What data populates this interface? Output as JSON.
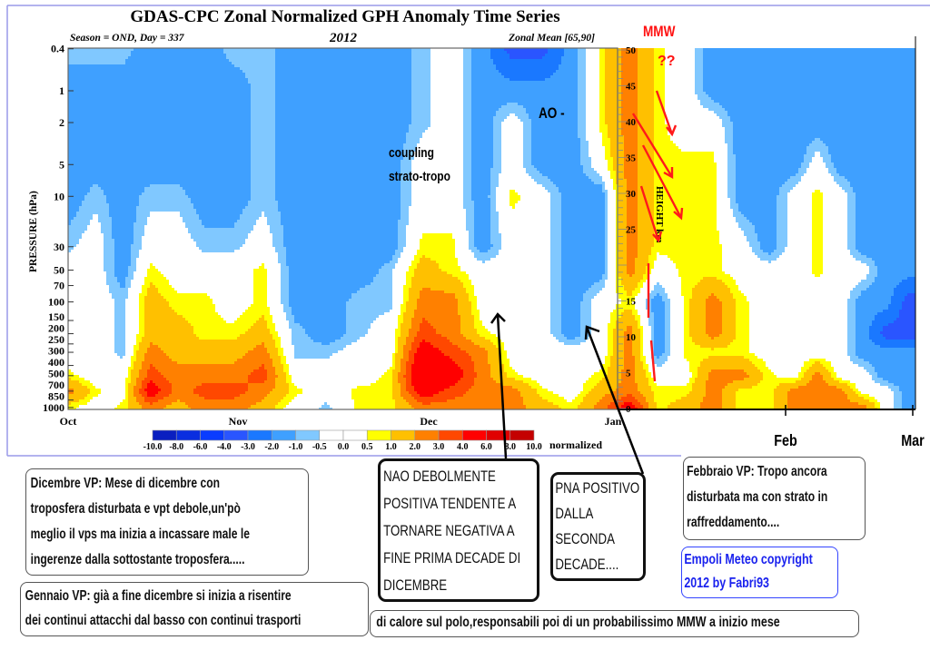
{
  "chart_data": {
    "type": "heatmap",
    "title": "GDAS-CPC Zonal Normalized GPH Anomaly Time Series",
    "subtitle_left": "Season = OND, Day = 337",
    "subtitle_center": "2012",
    "subtitle_right": "Zonal Mean [65,90]",
    "ylabel": "PRESSURE (hPa)",
    "y_scale": "log",
    "y_ticks": [
      "0.4",
      "1",
      "2",
      "5",
      "10",
      "30",
      "50",
      "70",
      "100",
      "150",
      "200",
      "250",
      "300",
      "400",
      "500",
      "700",
      "850",
      "1000"
    ],
    "x_ticks": [
      {
        "label": "Oct",
        "date": "2012-10-01"
      },
      {
        "label": "Nov",
        "date": "2012-11-01"
      },
      {
        "label": "Dec",
        "date": "2012-12-01"
      },
      {
        "label": "Jan",
        "date": "2013-01-01"
      },
      {
        "label": "Feb",
        "date": "2013-02-01"
      },
      {
        "label": "Mar",
        "date": "2013-03-01"
      }
    ],
    "colorbar": {
      "unit": "normalized",
      "labels": [
        "-10.0",
        "-8.0",
        "-6.0",
        "-4.0",
        "-3.0",
        "-2.0",
        "-1.0",
        "-0.5",
        "0.0",
        "0.5",
        "1.0",
        "2.0",
        "3.0",
        "4.0",
        "6.0",
        "8.0",
        "10.0"
      ],
      "colors": [
        "#0a1fc0",
        "#0a2ee0",
        "#0a3cff",
        "#2a55ff",
        "#1a78ff",
        "#3fa0ff",
        "#80c8ff",
        "#ffffff",
        "#ffffff",
        "#ffff00",
        "#ffc000",
        "#ff8000",
        "#ff4800",
        "#ff0000",
        "#e00000",
        "#c40000"
      ]
    },
    "levels_hPa": [
      0.4,
      1,
      2,
      5,
      10,
      30,
      50,
      100,
      200,
      300,
      500,
      700,
      1000
    ],
    "dates": [
      "2012-10-01",
      "2012-10-06",
      "2012-10-11",
      "2012-10-16",
      "2012-10-21",
      "2012-10-26",
      "2012-10-31",
      "2012-11-05",
      "2012-11-10",
      "2012-11-15",
      "2012-11-20",
      "2012-11-25",
      "2012-11-30",
      "2012-12-05",
      "2012-12-10",
      "2012-12-15",
      "2012-12-20",
      "2012-12-25",
      "2012-12-30",
      "2013-01-04",
      "2013-01-09",
      "2013-01-14",
      "2013-01-19",
      "2013-01-24",
      "2013-01-29",
      "2013-02-03",
      "2013-02-08",
      "2013-02-13",
      "2013-02-18",
      "2013-02-23",
      "2013-02-28"
    ],
    "values_by_date": [
      [
        -0.7,
        -1.5,
        -1.5,
        -1.5,
        -1.5,
        -0.7,
        0,
        0,
        0,
        0,
        0.7,
        2.5,
        0.7
      ],
      [
        -0.7,
        -1.5,
        -1.5,
        -1.5,
        -0.7,
        0,
        0,
        0,
        0,
        0,
        0,
        0.7,
        0
      ],
      [
        -0.7,
        -1.5,
        -1.5,
        -1.5,
        -1.5,
        -1.5,
        -1.5,
        -0.7,
        -0.7,
        -0.7,
        0,
        0,
        0.7
      ],
      [
        -1.5,
        -1.5,
        -1.5,
        -1.5,
        -0.7,
        0,
        0.7,
        1.5,
        1.5,
        2.5,
        3.5,
        5,
        2.5
      ],
      [
        -1.5,
        -1.5,
        -1.5,
        -1.5,
        -0.7,
        0,
        0,
        0.7,
        1.5,
        1.5,
        2.5,
        2.5,
        1.5
      ],
      [
        -1.5,
        -1.5,
        -1.5,
        -1.5,
        -1.5,
        -0.7,
        0,
        0.7,
        0.7,
        1.5,
        2.5,
        3.5,
        2.5
      ],
      [
        -0.7,
        -1.5,
        -1.5,
        -1.5,
        -1.5,
        -0.7,
        0,
        0,
        0.7,
        1.5,
        2.5,
        3.5,
        2.5
      ],
      [
        -0.7,
        -0.7,
        -0.7,
        -0.7,
        -0.7,
        0,
        0.7,
        0.7,
        1.5,
        2.5,
        3.5,
        2.5,
        1.5
      ],
      [
        -1.5,
        -1.5,
        -1.5,
        -1.5,
        -1.5,
        -1.5,
        -1.5,
        -1.5,
        -0.7,
        -0.7,
        0,
        0.7,
        0
      ],
      [
        -1.5,
        -1.5,
        -1.5,
        -1.5,
        -1.5,
        -1.5,
        -1.5,
        -1.5,
        -1.5,
        -0.7,
        0,
        0,
        -0.7
      ],
      [
        -1.5,
        -1.5,
        -1.5,
        -1.5,
        -1.5,
        -1.5,
        -1.5,
        -0.7,
        -0.7,
        0,
        0,
        0.7,
        0.7
      ],
      [
        -1.5,
        -1.5,
        -1.5,
        -1.5,
        -1.5,
        -1.5,
        -0.7,
        -0.7,
        0,
        0,
        0.7,
        0.7,
        0.7
      ],
      [
        -0.7,
        -0.7,
        -0.7,
        0,
        0,
        0.7,
        1.5,
        2.5,
        3.5,
        5,
        6,
        5,
        2.5
      ],
      [
        0,
        0,
        0,
        0,
        0,
        0.7,
        0.7,
        2.5,
        2.5,
        3.5,
        5,
        3.5,
        2.5
      ],
      [
        -1.5,
        -1.5,
        -1.5,
        -1.5,
        -1.5,
        -1.5,
        0,
        0,
        0.7,
        2.5,
        2.5,
        2.5,
        2.5
      ],
      [
        -3.5,
        -1.5,
        0,
        0,
        0.7,
        0,
        0,
        0,
        0,
        0,
        0.7,
        2.5,
        2.5
      ],
      [
        -3.5,
        -1.5,
        -1.5,
        -1.5,
        0,
        0,
        0,
        0,
        0,
        0,
        0,
        0.7,
        1.5
      ],
      [
        -1.5,
        -1.5,
        -1.5,
        -1.5,
        -1.5,
        -1.5,
        -1.5,
        -1.5,
        -1.5,
        0,
        0,
        0,
        0.7
      ],
      [
        0.7,
        0.7,
        0.7,
        0,
        -1.5,
        -1.5,
        -1.5,
        0,
        0,
        0,
        0.7,
        1.5,
        2.5
      ],
      [
        2.5,
        2.5,
        2.5,
        2.5,
        2.5,
        2.5,
        2.5,
        0.7,
        2.5,
        2.5,
        2.5,
        2.5,
        5
      ],
      [
        0.7,
        0.7,
        0.7,
        0.7,
        0.7,
        0.7,
        0,
        -1.5,
        -1.5,
        -1.5,
        0,
        0.7,
        0.7
      ],
      [
        0,
        0,
        0,
        0.7,
        0.7,
        0.7,
        0.7,
        0.7,
        0.7,
        0.7,
        0,
        0.7,
        1.5
      ],
      [
        -1.5,
        -1.5,
        0,
        0.7,
        0.7,
        0.7,
        0.7,
        2.5,
        2.5,
        0.7,
        2.5,
        2.5,
        2.5
      ],
      [
        -1.5,
        -1.5,
        -1.5,
        -1.5,
        -1.5,
        0,
        0,
        0.7,
        0.7,
        0.7,
        2.5,
        0.7,
        0.7
      ],
      [
        -1.5,
        -1.5,
        -1.5,
        -1.5,
        -1.5,
        -1.5,
        0,
        0,
        0,
        0,
        0.7,
        0.7,
        0.7
      ],
      [
        -1.5,
        -1.5,
        -1.5,
        -1.5,
        0,
        0,
        0,
        0,
        0,
        0,
        0,
        2.5,
        2.5
      ],
      [
        -1.5,
        -1.5,
        -1.5,
        0,
        0.7,
        0.7,
        0.7,
        0,
        0,
        0,
        2.5,
        2.5,
        2.5
      ],
      [
        -1.5,
        -1.5,
        -1.5,
        -1.5,
        0,
        0,
        0,
        0,
        0,
        0,
        0,
        2.5,
        2.5
      ],
      [
        -1.5,
        -1.5,
        -1.5,
        -1.5,
        -1.5,
        -1.5,
        0,
        -1.5,
        -1.5,
        -1.5,
        0,
        0,
        2.5
      ],
      [
        -1.5,
        -1.5,
        -1.5,
        -1.5,
        -1.5,
        -1.5,
        -1.5,
        -1.5,
        -3.5,
        -1.5,
        -1.5,
        0,
        0
      ],
      [
        -1.5,
        -1.5,
        -1.5,
        -1.5,
        -1.5,
        -1.5,
        -1.5,
        -3.5,
        -3.5,
        -1.5,
        -1.5,
        -1.5,
        -1.5
      ]
    ],
    "height_scale": {
      "label": "HEIGHT km",
      "ticks": [
        "50",
        "45",
        "40",
        "35",
        "30",
        "25",
        "15",
        "10",
        "5",
        "0"
      ]
    },
    "overlay_labels": {
      "coupling_1": "coupling",
      "coupling_2": "strato-tropo",
      "ao": "AO -",
      "mmw": "MMW",
      "question": "??"
    }
  },
  "annotations": {
    "dicembre": [
      "Dicembre VP: Mese di dicembre con",
      "troposfera disturbata e vpt debole,un'pò",
      "meglio il vps ma inizia a incassare male le",
      "ingerenze dalla sottostante troposfera....."
    ],
    "gennaio": [
      "Gennaio VP: già a fine dicembre si inizia a risentire",
      "dei continui attacchi dal basso con continui trasporti"
    ],
    "gennaio_cont": "di calore sul polo,responsabili poi di un probabilissimo MMW a inizio mese",
    "nao": [
      "NAO DEBOLMENTE",
      "POSITIVA TENDENTE  A",
      "TORNARE NEGATIVA A",
      "FINE PRIMA DECADE DI",
      "DICEMBRE"
    ],
    "pna": [
      "PNA POSITIVO",
      "DALLA",
      "SECONDA",
      "DECADE...."
    ],
    "febbraio": [
      "Febbraio VP: Tropo ancora",
      "disturbata ma con strato in",
      "raffreddamento...."
    ],
    "copyright": [
      "Empoli Meteo copyright",
      "2012 by Fabri93"
    ]
  }
}
